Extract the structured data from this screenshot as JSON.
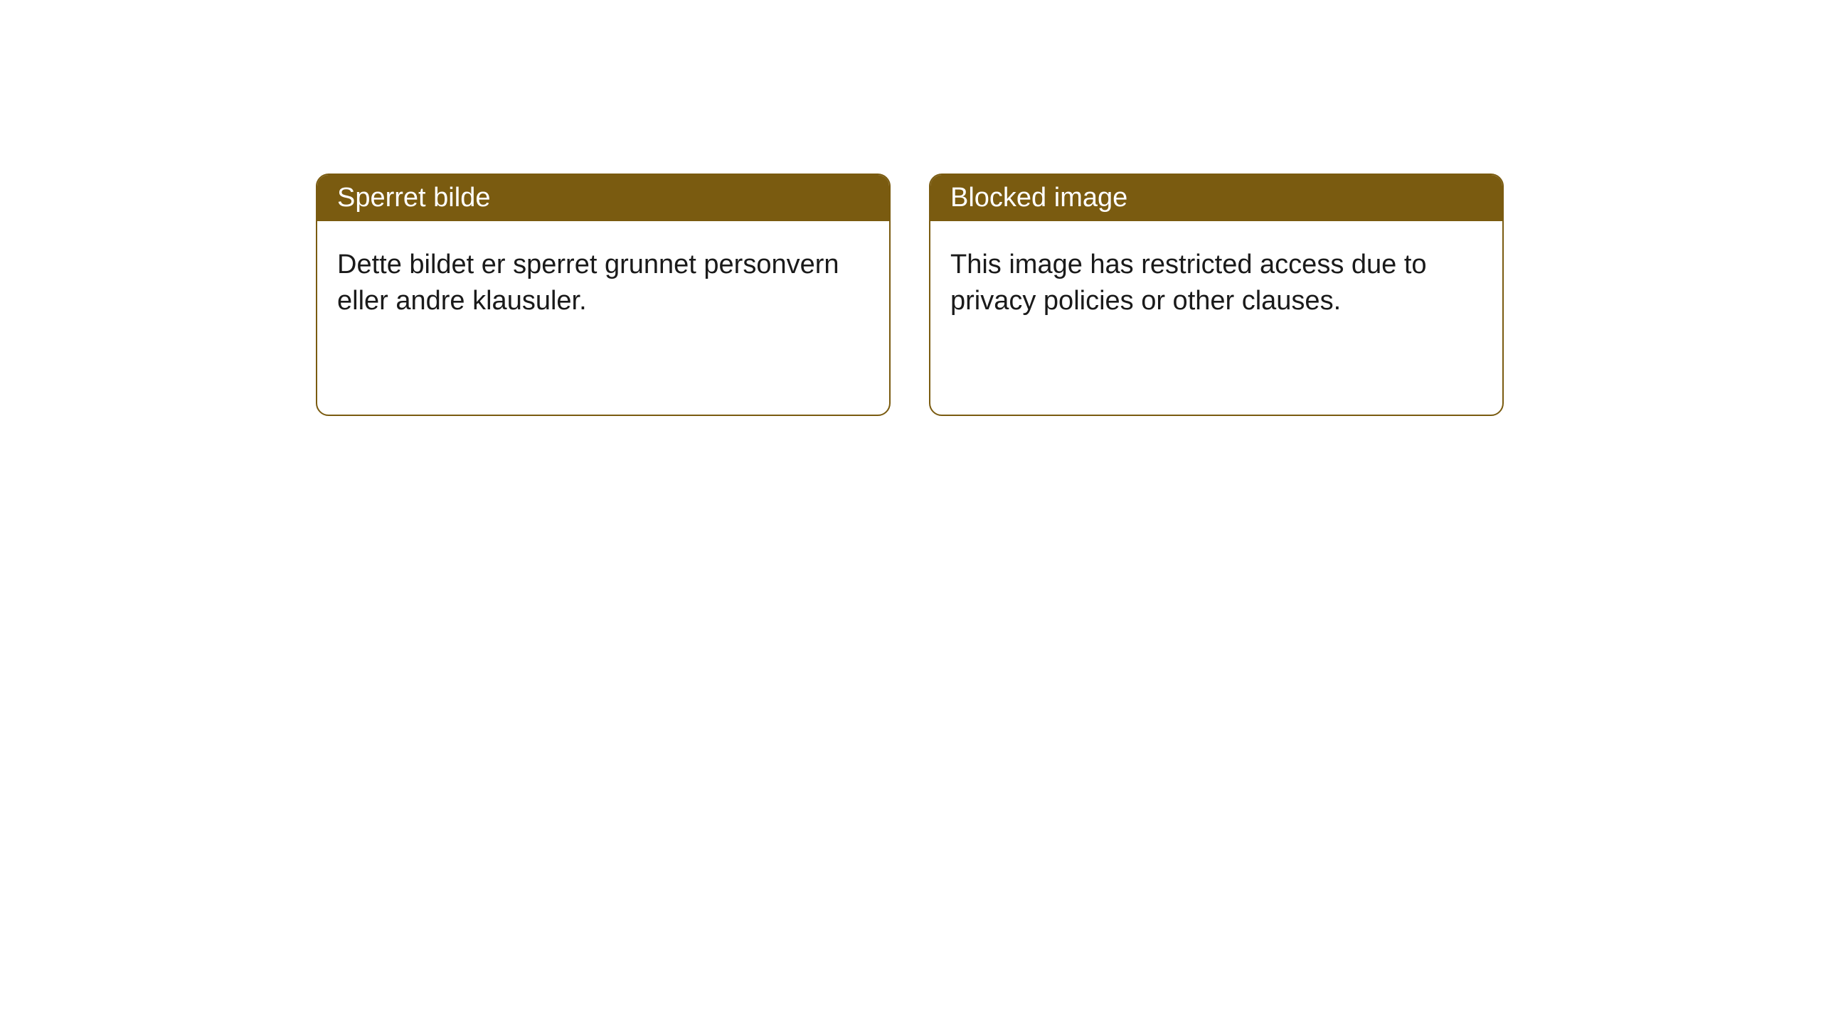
{
  "cards": [
    {
      "title": "Sperret bilde",
      "body": "Dette bildet er sperret grunnet personvern eller andre klausuler."
    },
    {
      "title": "Blocked image",
      "body": "This image has restricted access due to privacy policies or other clauses."
    }
  ],
  "styles": {
    "header_background": "#7a5b10",
    "header_text_color": "#ffffff",
    "card_border_color": "#7a5b10",
    "card_background": "#ffffff",
    "body_text_color": "#1a1a1a",
    "page_background": "#ffffff",
    "border_radius": 18,
    "title_fontsize": 38,
    "body_fontsize": 38
  }
}
